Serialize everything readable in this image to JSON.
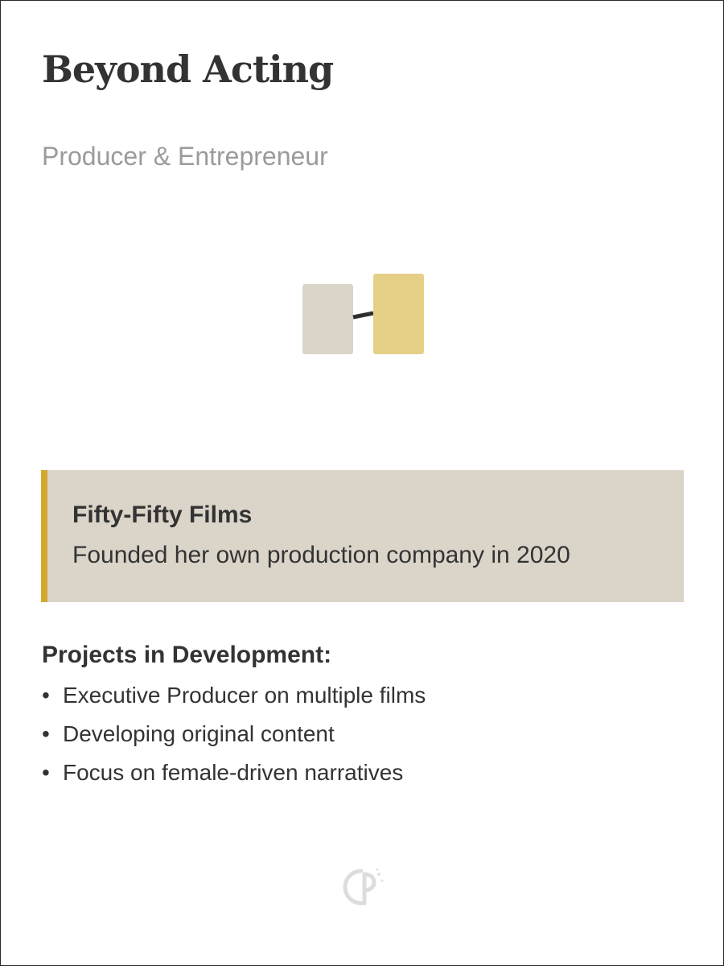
{
  "header": {
    "title": "Beyond Acting",
    "subtitle": "Producer & Entrepreneur"
  },
  "illustration": {
    "icon": "connected-frames-icon",
    "colors": {
      "left_frame": "#dbd4c8",
      "right_frame": "#e6d087",
      "connector": "#2f2f2f"
    }
  },
  "highlight_card": {
    "title": "Fifty-Fifty Films",
    "text": "Founded her own production company in 2020",
    "accent_color": "#d4a82f",
    "background_color": "#dbd5c9"
  },
  "projects": {
    "heading": "Projects in Development:",
    "bullet_symbol": "•",
    "items": [
      "Executive Producer on multiple films",
      "Developing original content",
      "Focus on female-driven narratives"
    ]
  },
  "watermark": {
    "icon": "logo-watermark-icon"
  }
}
